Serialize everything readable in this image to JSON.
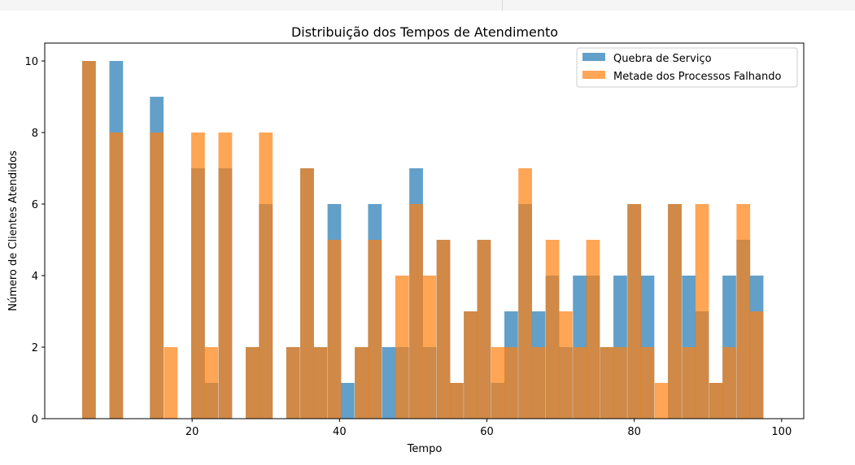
{
  "chart_data": {
    "type": "bar",
    "title": "Distribuição dos Tempos de Atendimento",
    "xlabel": "Tempo",
    "ylabel": "Número de Clientes Atendidos",
    "xlim": [
      0,
      103
    ],
    "ylim": [
      0,
      10.5
    ],
    "xticks": [
      20,
      40,
      60,
      80,
      100
    ],
    "yticks": [
      0,
      2,
      4,
      6,
      8,
      10
    ],
    "legend_position": "top-right",
    "grid": false,
    "bin_centers": [
      6.0,
      9.7,
      13.4,
      15.2,
      17.1,
      18.9,
      20.8,
      22.6,
      24.5,
      26.3,
      28.2,
      30.0,
      31.9,
      33.7,
      35.6,
      37.4,
      39.3,
      41.1,
      43.0,
      44.8,
      46.7,
      48.5,
      50.4,
      52.2,
      54.1,
      55.9,
      57.8,
      59.6,
      61.5,
      63.3,
      65.2,
      67.0,
      68.9,
      70.7,
      72.6,
      74.4,
      76.3,
      78.1,
      80.0,
      81.8,
      83.7,
      85.5,
      87.4,
      89.2,
      91.1,
      92.9,
      94.8,
      96.6
    ],
    "series": [
      {
        "name": "Quebra de Serviço",
        "color": "#1f77b4",
        "values": [
          10,
          10,
          0,
          9,
          0,
          0,
          7,
          1,
          7,
          0,
          2,
          6,
          0,
          2,
          7,
          2,
          6,
          1,
          2,
          6,
          2,
          2,
          7,
          2,
          5,
          1,
          3,
          5,
          1,
          3,
          6,
          3,
          4,
          2,
          4,
          4,
          2,
          4,
          6,
          4,
          0,
          6,
          4,
          3,
          1,
          4,
          5,
          4
        ]
      },
      {
        "name": "Metade dos Processos Falhando",
        "color": "#ff7f0e",
        "values": [
          10,
          8,
          0,
          8,
          2,
          0,
          8,
          2,
          8,
          0,
          2,
          8,
          0,
          2,
          7,
          2,
          5,
          0,
          2,
          5,
          0,
          4,
          6,
          4,
          5,
          1,
          3,
          5,
          2,
          2,
          7,
          2,
          5,
          3,
          2,
          5,
          2,
          2,
          6,
          2,
          1,
          6,
          2,
          6,
          1,
          2,
          6,
          3
        ]
      }
    ]
  }
}
